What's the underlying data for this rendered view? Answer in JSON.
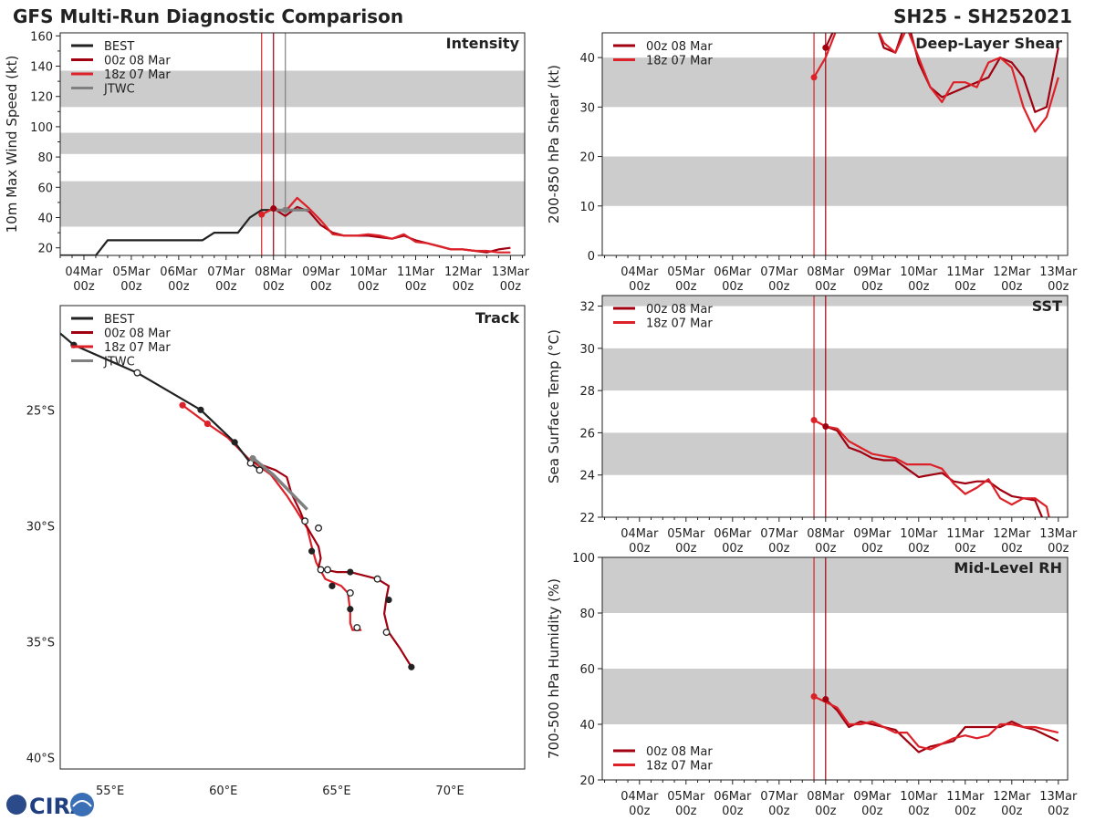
{
  "header": {
    "title": "GFS Multi-Run Diagnostic Comparison",
    "storm_id": "SH25 - SH252021"
  },
  "logo": {
    "text": "CIRA"
  },
  "colors": {
    "best": "#222222",
    "run_00z": "#a00010",
    "run_18z": "#dd2128",
    "jtwc": "#808080",
    "band": "#cccccc"
  },
  "time_axis": {
    "ticks": [
      {
        "day": 0,
        "l1": "04Mar",
        "l2": "00z"
      },
      {
        "day": 1,
        "l1": "05Mar",
        "l2": "00z"
      },
      {
        "day": 2,
        "l1": "06Mar",
        "l2": "00z"
      },
      {
        "day": 3,
        "l1": "07Mar",
        "l2": "00z"
      },
      {
        "day": 4,
        "l1": "08Mar",
        "l2": "00z"
      },
      {
        "day": 5,
        "l1": "09Mar",
        "l2": "00z"
      },
      {
        "day": 6,
        "l1": "10Mar",
        "l2": "00z"
      },
      {
        "day": 7,
        "l1": "11Mar",
        "l2": "00z"
      },
      {
        "day": 8,
        "l1": "12Mar",
        "l2": "00z"
      },
      {
        "day": 9,
        "l1": "13Mar",
        "l2": "00z"
      }
    ]
  },
  "chart_data": [
    {
      "id": "intensity",
      "type": "line",
      "title": "Intensity",
      "ylabel": "10m Max Wind Speed (kt)",
      "xlim": [
        -0.5,
        9.3
      ],
      "ylim": [
        15,
        162
      ],
      "yticks": [
        20,
        40,
        60,
        80,
        100,
        120,
        140,
        160
      ],
      "bands": [
        [
          34,
          64
        ],
        [
          82,
          96
        ],
        [
          113,
          137
        ]
      ],
      "vlines": [
        {
          "x": 3.75,
          "color": "run_18z"
        },
        {
          "x": 4.0,
          "color": "run_00z"
        },
        {
          "x": 4.25,
          "color": "jtwc"
        }
      ],
      "legend": [
        "BEST",
        "00z 08 Mar",
        "18z 07 Mar",
        "JTWC"
      ],
      "series": [
        {
          "name": "BEST",
          "color": "best",
          "x": [
            -0.5,
            0.0,
            0.25,
            0.5,
            1.0,
            1.5,
            2.0,
            2.5,
            2.75,
            3.0,
            3.25,
            3.5,
            3.75,
            4.0
          ],
          "y": [
            15,
            15,
            15,
            25,
            25,
            25,
            25,
            25,
            30,
            30,
            30,
            40,
            45,
            45
          ]
        },
        {
          "name": "00z 08 Mar",
          "color": "run_00z",
          "x": [
            4.0,
            4.25,
            4.5,
            4.75,
            5.0,
            5.25,
            5.5,
            5.75,
            6.0,
            6.25,
            6.5,
            6.75,
            7.0,
            7.25,
            7.5,
            7.75,
            8.0,
            8.25,
            8.5,
            8.75,
            9.0
          ],
          "y": [
            46,
            41,
            47,
            44,
            35,
            30,
            28,
            28,
            28,
            27,
            26,
            28,
            25,
            23,
            21,
            19,
            19,
            18,
            17,
            19,
            20
          ]
        },
        {
          "name": "18z 07 Mar",
          "color": "run_18z",
          "x": [
            3.75,
            4.0,
            4.25,
            4.5,
            4.75,
            5.0,
            5.25,
            5.5,
            5.75,
            6.0,
            6.25,
            6.5,
            6.75,
            7.0,
            7.25,
            7.5,
            7.75,
            8.0,
            8.25,
            8.5,
            8.75,
            9.0
          ],
          "y": [
            42,
            46,
            44,
            53,
            46,
            38,
            29,
            28,
            28,
            29,
            28,
            26,
            29,
            24,
            23,
            21,
            19,
            19,
            18,
            18,
            17,
            17
          ]
        },
        {
          "name": "JTWC",
          "color": "jtwc",
          "x": [
            4.0,
            4.25,
            4.5,
            4.75
          ],
          "y": [
            45,
            45,
            45,
            45
          ]
        }
      ],
      "markers": [
        {
          "x": 3.75,
          "y": 42,
          "color": "run_18z"
        },
        {
          "x": 4.0,
          "y": 46,
          "color": "run_00z"
        },
        {
          "x": 4.25,
          "y": 45,
          "color": "jtwc"
        }
      ]
    },
    {
      "id": "shear",
      "type": "line",
      "title": "Deep-Layer Shear",
      "ylabel": "200-850 hPa Shear (kt)",
      "xlim": [
        -0.8,
        9.2
      ],
      "ylim": [
        0,
        45
      ],
      "yticks": [
        0,
        10,
        20,
        30,
        40
      ],
      "bands": [
        [
          10,
          20
        ],
        [
          30,
          40
        ]
      ],
      "vlines": [
        {
          "x": 3.75,
          "color": "run_18z"
        },
        {
          "x": 4.0,
          "color": "run_00z"
        }
      ],
      "legend": [
        "00z 08 Mar",
        "18z 07 Mar"
      ],
      "series": [
        {
          "name": "00z 08 Mar",
          "color": "run_00z",
          "x": [
            4.0,
            4.25,
            4.5,
            4.75,
            5.0,
            5.25,
            5.5,
            5.75,
            6.0,
            6.25,
            6.5,
            6.75,
            7.0,
            7.25,
            7.5,
            7.75,
            8.0,
            8.25,
            8.5,
            8.75,
            9.0
          ],
          "y": [
            42,
            47,
            51,
            52,
            49,
            42,
            41,
            48,
            39,
            34,
            32,
            33,
            34,
            35,
            36,
            40,
            39,
            36,
            29,
            30,
            42
          ]
        },
        {
          "name": "18z 07 Mar",
          "color": "run_18z",
          "x": [
            3.75,
            4.0,
            4.25,
            4.5,
            4.75,
            5.0,
            5.25,
            5.5,
            5.75,
            6.0,
            6.25,
            6.5,
            6.75,
            7.0,
            7.25,
            7.5,
            7.75,
            8.0,
            8.25,
            8.5,
            8.75,
            9.0
          ],
          "y": [
            36,
            40,
            46,
            50,
            52,
            48,
            43,
            41,
            46,
            40,
            34,
            31,
            35,
            35,
            34,
            39,
            40,
            38,
            30,
            25,
            28,
            36
          ]
        }
      ],
      "markers": [
        {
          "x": 3.75,
          "y": 36,
          "color": "run_18z"
        },
        {
          "x": 4.0,
          "y": 42,
          "color": "run_00z"
        }
      ]
    },
    {
      "id": "sst",
      "type": "line",
      "title": "SST",
      "ylabel": "Sea Surface Temp (°C)",
      "xlim": [
        -0.8,
        9.2
      ],
      "ylim": [
        22,
        32.5
      ],
      "yticks": [
        22,
        24,
        26,
        28,
        30,
        32
      ],
      "bands": [
        [
          24,
          26
        ],
        [
          28,
          30
        ],
        [
          32,
          32.5
        ]
      ],
      "vlines": [
        {
          "x": 3.75,
          "color": "run_18z"
        },
        {
          "x": 4.0,
          "color": "run_00z"
        }
      ],
      "legend": [
        "00z 08 Mar",
        "18z 07 Mar"
      ],
      "series": [
        {
          "name": "00z 08 Mar",
          "color": "run_00z",
          "x": [
            4.0,
            4.25,
            4.5,
            4.75,
            5.0,
            5.25,
            5.5,
            5.75,
            6.0,
            6.25,
            6.5,
            6.75,
            7.0,
            7.25,
            7.5,
            7.75,
            8.0,
            8.25,
            8.5,
            8.65
          ],
          "y": [
            26.3,
            26.1,
            25.3,
            25.1,
            24.8,
            24.7,
            24.7,
            24.3,
            23.9,
            24.0,
            24.1,
            23.7,
            23.6,
            23.7,
            23.7,
            23.3,
            23.0,
            22.9,
            22.8,
            22.0
          ]
        },
        {
          "name": "18z 07 Mar",
          "color": "run_18z",
          "x": [
            3.75,
            4.0,
            4.25,
            4.5,
            4.75,
            5.0,
            5.25,
            5.5,
            5.75,
            6.0,
            6.25,
            6.5,
            6.75,
            7.0,
            7.25,
            7.5,
            7.75,
            8.0,
            8.25,
            8.5,
            8.75,
            8.8
          ],
          "y": [
            26.6,
            26.3,
            26.2,
            25.6,
            25.3,
            25.0,
            24.9,
            24.8,
            24.5,
            24.5,
            24.5,
            24.3,
            23.6,
            23.1,
            23.4,
            23.8,
            22.9,
            22.6,
            22.9,
            22.9,
            22.5,
            22.0
          ]
        }
      ],
      "markers": [
        {
          "x": 3.75,
          "y": 26.6,
          "color": "run_18z"
        },
        {
          "x": 4.0,
          "y": 26.3,
          "color": "run_00z"
        }
      ]
    },
    {
      "id": "rh",
      "type": "line",
      "title": "Mid-Level RH",
      "ylabel": "700-500 hPa Humidity (%)",
      "xlim": [
        -0.8,
        9.2
      ],
      "ylim": [
        20,
        100
      ],
      "yticks": [
        20,
        40,
        60,
        80,
        100
      ],
      "bands": [
        [
          40,
          60
        ],
        [
          80,
          100
        ]
      ],
      "vlines": [
        {
          "x": 3.75,
          "color": "run_18z"
        },
        {
          "x": 4.0,
          "color": "run_00z"
        }
      ],
      "legend": [
        "00z 08 Mar",
        "18z 07 Mar"
      ],
      "series": [
        {
          "name": "00z 08 Mar",
          "color": "run_00z",
          "x": [
            4.0,
            4.25,
            4.5,
            4.75,
            5.0,
            5.25,
            5.5,
            5.75,
            6.0,
            6.25,
            6.5,
            6.75,
            7.0,
            7.25,
            7.5,
            7.75,
            8.0,
            8.25,
            8.5,
            8.75,
            9.0
          ],
          "y": [
            49,
            45,
            39,
            41,
            40,
            39,
            38,
            34,
            30,
            32,
            33,
            34,
            39,
            39,
            39,
            39,
            41,
            39,
            38,
            36,
            34
          ]
        },
        {
          "name": "18z 07 Mar",
          "color": "run_18z",
          "x": [
            3.75,
            4.0,
            4.25,
            4.5,
            4.75,
            5.0,
            5.25,
            5.5,
            5.75,
            6.0,
            6.25,
            6.5,
            6.75,
            7.0,
            7.25,
            7.5,
            7.75,
            8.0,
            8.25,
            8.5,
            8.75,
            9.0
          ],
          "y": [
            50,
            48,
            46,
            40,
            40,
            41,
            39,
            37,
            37,
            32,
            31,
            33,
            35,
            36,
            35,
            36,
            40,
            40,
            39,
            39,
            38,
            37
          ]
        }
      ],
      "markers": [
        {
          "x": 3.75,
          "y": 50,
          "color": "run_18z"
        },
        {
          "x": 4.0,
          "y": 49,
          "color": "run_00z"
        }
      ]
    },
    {
      "id": "track",
      "type": "line",
      "title": "Track",
      "xlim": [
        52.8,
        73.3
      ],
      "ylim": [
        -40.5,
        -20.5
      ],
      "xticks": [
        {
          "v": 55,
          "label": "55°E"
        },
        {
          "v": 60,
          "label": "60°E"
        },
        {
          "v": 65,
          "label": "65°E"
        },
        {
          "v": 70,
          "label": "70°E"
        }
      ],
      "yticks": [
        {
          "v": -25,
          "label": "25°S"
        },
        {
          "v": -30,
          "label": "30°S"
        },
        {
          "v": -35,
          "label": "35°S"
        },
        {
          "v": -40,
          "label": "40°S"
        }
      ],
      "legend": [
        "BEST",
        "00z 08 Mar",
        "18z 07 Mar",
        "JTWC"
      ],
      "series": [
        {
          "name": "BEST",
          "color": "best",
          "x": [
            52.8,
            53.4,
            56.2,
            59.0,
            60.5,
            61.2,
            61.6
          ],
          "y": [
            -21.7,
            -22.2,
            -23.4,
            -25.0,
            -26.4,
            -27.3,
            -27.6
          ]
        },
        {
          "name": "JTWC",
          "color": "jtwc",
          "x": [
            61.2,
            62.2,
            63.0,
            63.7
          ],
          "y": [
            -27.0,
            -27.8,
            -28.6,
            -29.3
          ]
        },
        {
          "name": "00z 08 Mar",
          "color": "run_00z",
          "x": [
            61.2,
            62.3,
            62.8,
            63.0,
            63.4,
            63.6,
            63.9,
            64.2,
            64.3,
            64.2,
            64.3,
            64.5,
            65.0,
            65.6,
            66.8,
            67.3,
            67.2,
            67.1,
            67.3,
            67.8,
            68.3
          ],
          "y": [
            -27.2,
            -27.6,
            -27.9,
            -28.6,
            -29.4,
            -29.9,
            -30.4,
            -30.9,
            -31.4,
            -31.8,
            -31.9,
            -31.9,
            -32.0,
            -32.0,
            -32.3,
            -32.6,
            -33.1,
            -33.8,
            -34.6,
            -35.3,
            -36.1
          ]
        },
        {
          "name": "18z 07 Mar",
          "color": "run_18z",
          "x": [
            58.2,
            59.3,
            60.2,
            61.1,
            62.1,
            62.8,
            63.2,
            63.7,
            63.9,
            64.1,
            64.5,
            65.2,
            65.5,
            65.6,
            65.6,
            65.7,
            66.1
          ],
          "y": [
            -24.8,
            -25.6,
            -26.2,
            -27.1,
            -27.8,
            -28.7,
            -29.3,
            -30.1,
            -30.9,
            -31.6,
            -32.3,
            -32.6,
            -32.9,
            -33.7,
            -34.2,
            -34.5,
            -34.5
          ]
        }
      ],
      "markers": [
        {
          "x": 53.4,
          "y": -22.2,
          "color": "best",
          "open": false
        },
        {
          "x": 56.2,
          "y": -23.4,
          "color": "best",
          "open": true
        },
        {
          "x": 59.0,
          "y": -25.0,
          "color": "best",
          "open": false
        },
        {
          "x": 60.5,
          "y": -26.4,
          "color": "best",
          "open": false
        },
        {
          "x": 61.2,
          "y": -27.3,
          "color": "best",
          "open": true
        },
        {
          "x": 61.6,
          "y": -27.6,
          "color": "best",
          "open": true
        },
        {
          "x": 61.3,
          "y": -27.1,
          "color": "jtwc",
          "open": false
        },
        {
          "x": 58.2,
          "y": -24.8,
          "color": "run_18z",
          "open": false
        },
        {
          "x": 59.3,
          "y": -25.6,
          "color": "run_18z",
          "open": false
        },
        {
          "x": 63.6,
          "y": -29.8,
          "color": "best",
          "open": true
        },
        {
          "x": 64.2,
          "y": -30.1,
          "color": "best",
          "open": true
        },
        {
          "x": 63.9,
          "y": -31.1,
          "color": "best",
          "open": false
        },
        {
          "x": 64.3,
          "y": -31.9,
          "color": "best",
          "open": true
        },
        {
          "x": 64.6,
          "y": -31.9,
          "color": "best",
          "open": true
        },
        {
          "x": 65.6,
          "y": -32.0,
          "color": "best",
          "open": false
        },
        {
          "x": 64.8,
          "y": -32.6,
          "color": "best",
          "open": false
        },
        {
          "x": 66.8,
          "y": -32.3,
          "color": "best",
          "open": true
        },
        {
          "x": 65.6,
          "y": -32.9,
          "color": "best",
          "open": true
        },
        {
          "x": 65.6,
          "y": -33.6,
          "color": "best",
          "open": false
        },
        {
          "x": 67.3,
          "y": -33.2,
          "color": "best",
          "open": false
        },
        {
          "x": 65.9,
          "y": -34.4,
          "color": "best",
          "open": true
        },
        {
          "x": 67.2,
          "y": -34.6,
          "color": "best",
          "open": true
        },
        {
          "x": 68.3,
          "y": -36.1,
          "color": "best",
          "open": false
        }
      ]
    }
  ]
}
